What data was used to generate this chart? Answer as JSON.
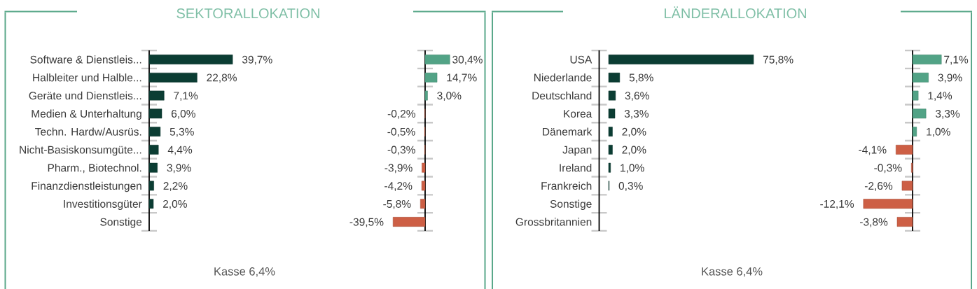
{
  "chart_data": [
    {
      "type": "bar",
      "title": "SEKTORALLOKATION",
      "orientation": "horizontal",
      "categories": [
        "Software & Dienstleis...",
        "Halbleiter und Halble...",
        "Geräte und Dienstleis...",
        "Medien & Unterhaltung",
        "Techn. Hardw/Ausrüs.",
        "Nicht-Basiskonsumgüte...",
        "Pharm., Biotechnol.",
        "Finanzdienstleistungen",
        "Investitionsgüter",
        "Sonstige"
      ],
      "values": [
        39.7,
        22.8,
        7.1,
        6.0,
        5.3,
        4.4,
        3.9,
        2.2,
        2.0,
        null
      ],
      "color": "#0b3d33",
      "value_labels": [
        "39,7%",
        "22,8%",
        "7,1%",
        "6,0%",
        "5,3%",
        "4,4%",
        "3,9%",
        "2,2%",
        "2,0%",
        null
      ],
      "tick_labels": "y",
      "annotations": [
        "Kasse 6,4%"
      ]
    },
    {
      "type": "bar",
      "orientation": "horizontal",
      "categories": [
        null,
        null,
        null,
        null,
        null,
        null,
        null,
        null,
        null,
        null
      ],
      "values": [
        30.4,
        14.7,
        3.0,
        -0.2,
        -0.5,
        -0.3,
        -3.9,
        -4.2,
        -5.8,
        -39.5
      ],
      "colors": [
        "#52a386",
        "#52a386",
        "#52a386",
        "#cd5f45",
        "#cd5f45",
        "#cd5f45",
        "#cd5f45",
        "#cd5f45",
        "#cd5f45",
        "#cd5f45"
      ],
      "value_labels": [
        "30,4%",
        "14,7%",
        "3,0%",
        "-0,2%",
        "-0,5%",
        "-0,3%",
        "-3,9%",
        "-4,2%",
        "-5,8%",
        "-39,5%"
      ],
      "tick_labels": false
    },
    {
      "type": "bar",
      "title": "LÄNDERALLOKATION",
      "orientation": "horizontal",
      "categories": [
        "USA",
        "Niederlande",
        "Deutschland",
        "Korea",
        "Dänemark",
        "Japan",
        "Ireland",
        "Frankreich",
        "Sonstige",
        "Grossbritannien"
      ],
      "values": [
        75.8,
        5.8,
        3.6,
        3.3,
        2.0,
        2.0,
        1.0,
        0.3,
        null,
        null
      ],
      "color": "#0b3d33",
      "value_labels": [
        "75,8%",
        "5,8%",
        "3,6%",
        "3,3%",
        "2,0%",
        "2,0%",
        "1,0%",
        "0,3%",
        null,
        null
      ],
      "tick_labels": "y",
      "annotations": [
        "Kasse 6,4%"
      ]
    },
    {
      "type": "bar",
      "orientation": "horizontal",
      "categories": [
        null,
        null,
        null,
        null,
        null,
        null,
        null,
        null,
        null,
        null
      ],
      "values": [
        7.1,
        3.9,
        1.4,
        3.3,
        1.0,
        -4.1,
        -0.3,
        -2.6,
        -12.1,
        -3.8
      ],
      "colors": [
        "#52a386",
        "#52a386",
        "#52a386",
        "#52a386",
        "#52a386",
        "#cd5f45",
        "#cd5f45",
        "#cd5f45",
        "#cd5f45",
        "#cd5f45"
      ],
      "value_labels": [
        "7,1%",
        "3,9%",
        "1,4%",
        "3,3%",
        "1,0%",
        "-4,1%",
        "-0,3%",
        "-2,6%",
        "-12,1%",
        "-3,8%"
      ],
      "tick_labels": false
    }
  ]
}
